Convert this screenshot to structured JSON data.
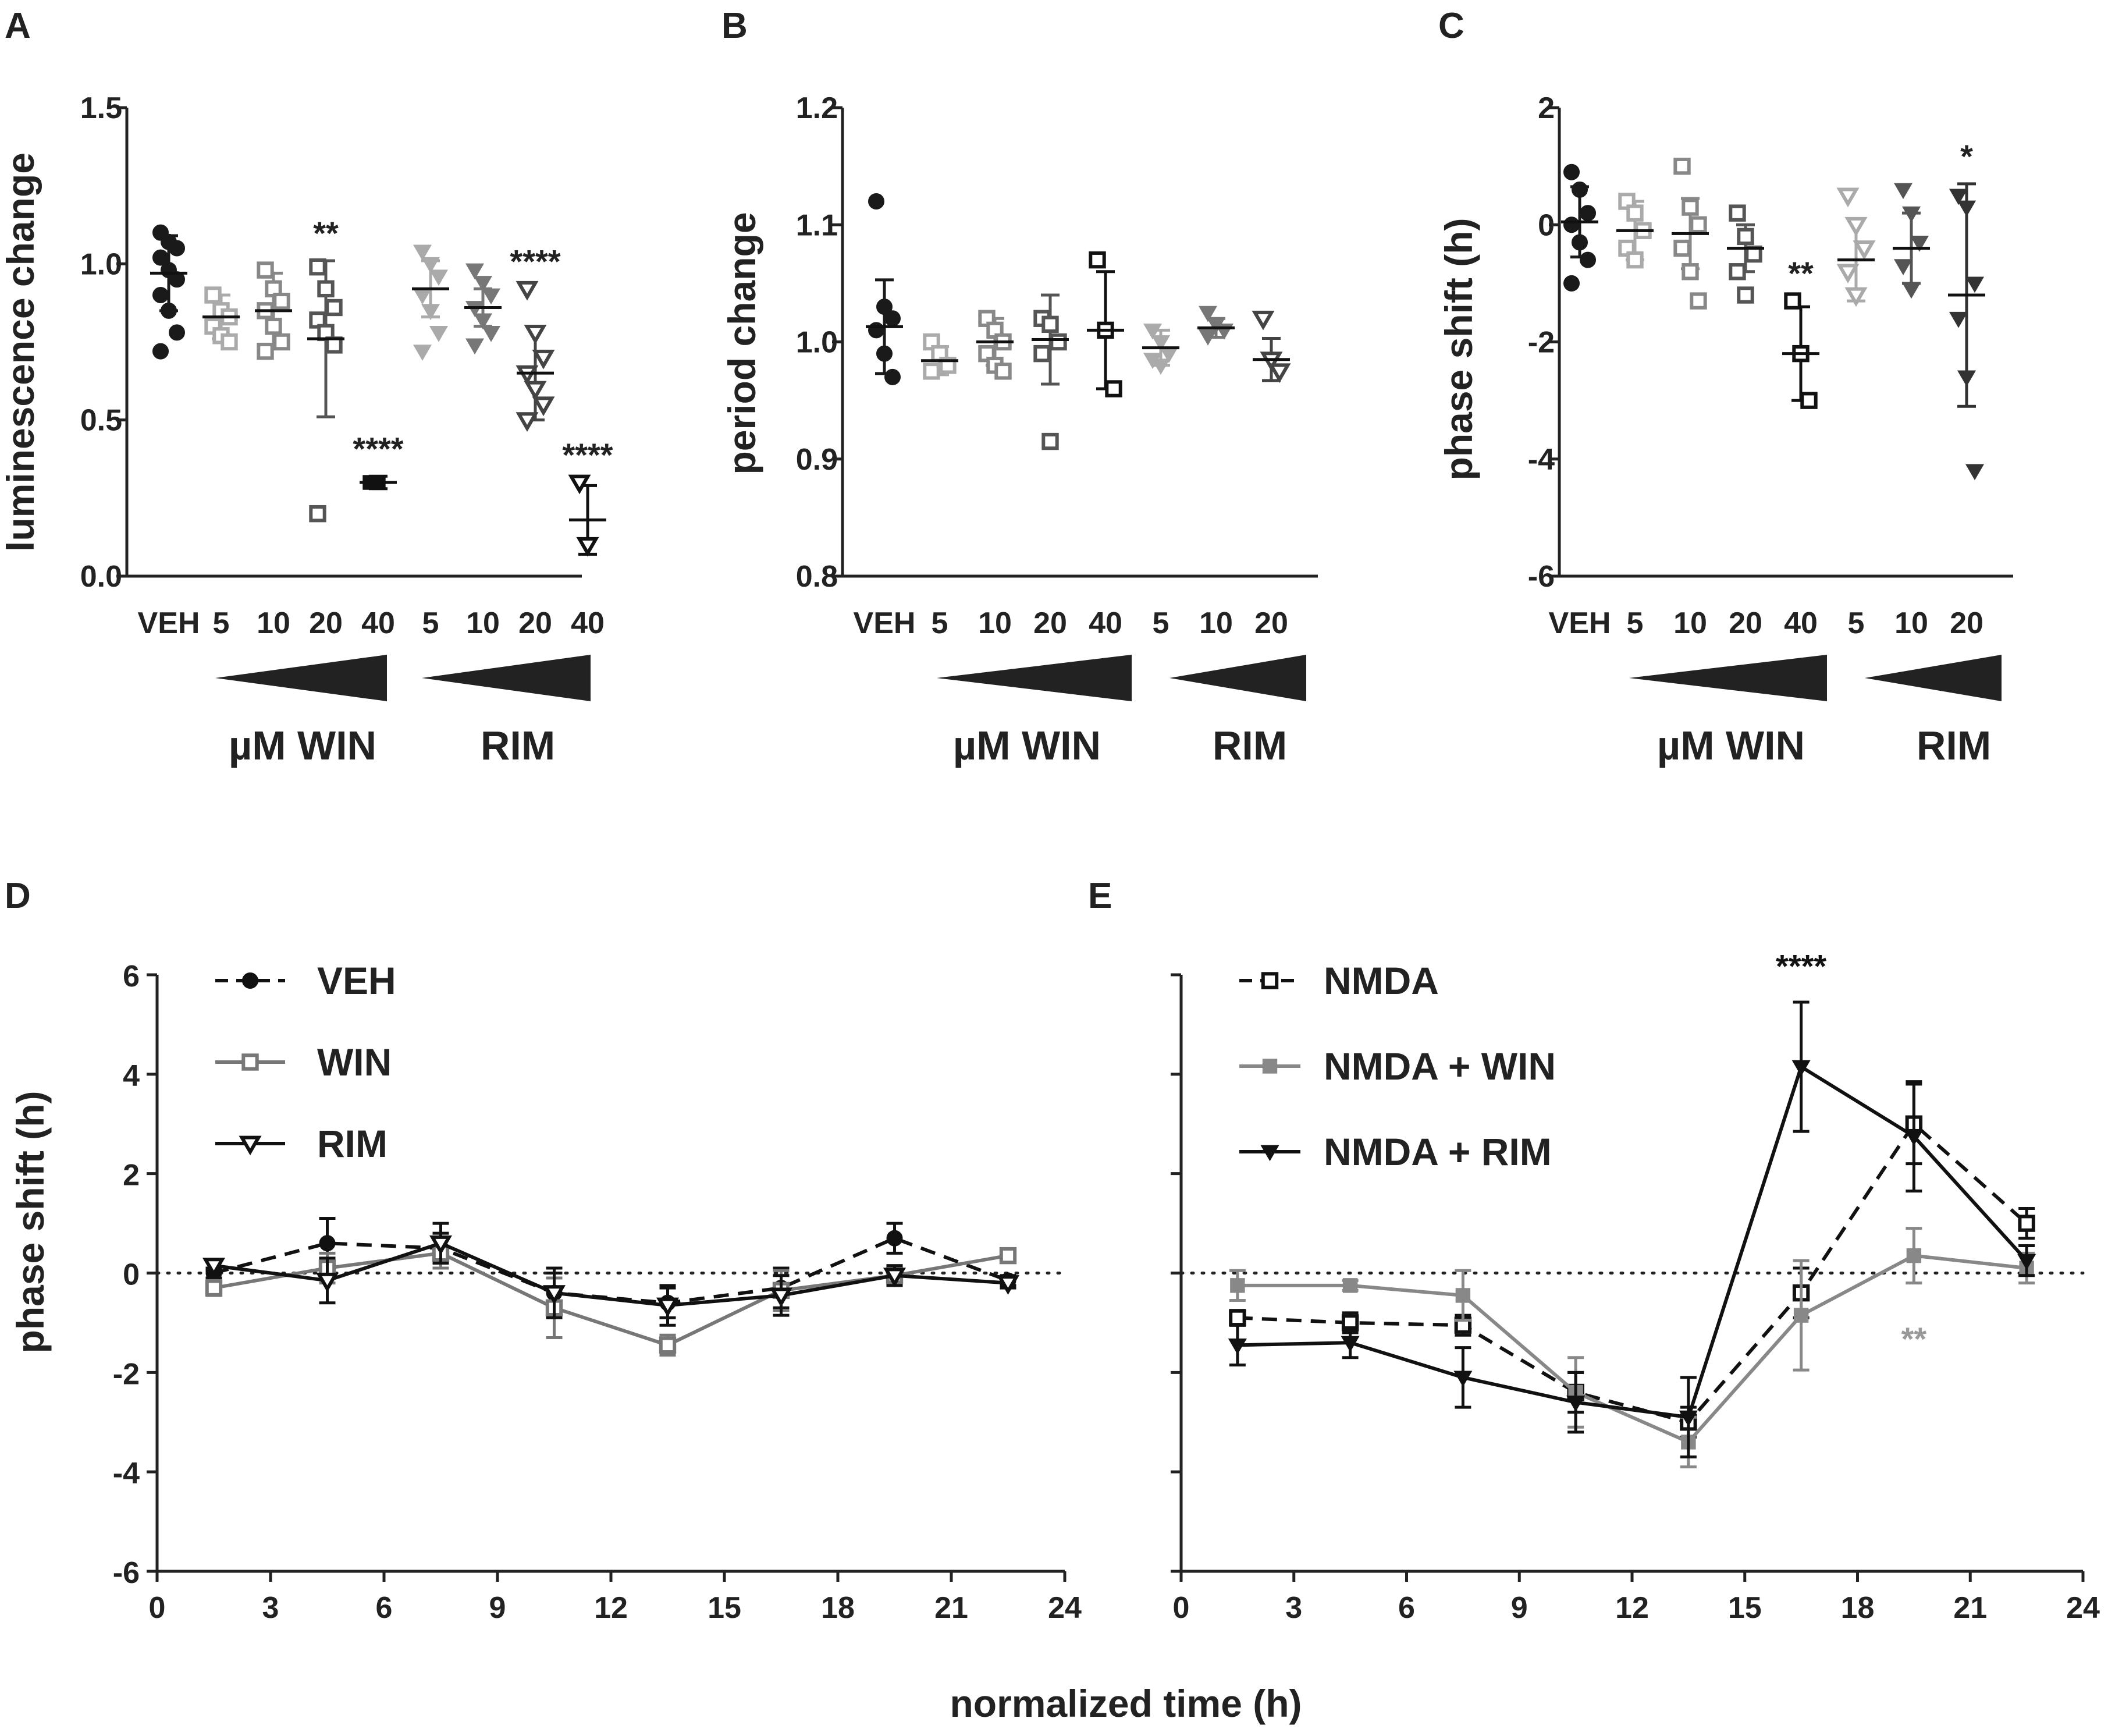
{
  "panels_ABC": [
    {
      "letter": "A",
      "ylabel": "luminescence change",
      "yticks": [
        "1.5",
        "1.0",
        "0.5",
        "0.0"
      ],
      "ylim": [
        0,
        1.5
      ],
      "categories": [
        "VEH",
        "5",
        "10",
        "20",
        "40",
        "5",
        "10",
        "20",
        "40"
      ],
      "group_labels": [
        "µM WIN",
        "RIM"
      ],
      "markers": [
        "circle",
        "square-open",
        "square-open",
        "square-open",
        "square",
        "triangle-down",
        "triangle-down",
        "triangle-down-open",
        "triangle-down-open"
      ],
      "colors": [
        "#1a1a1a",
        "#aaaaaa",
        "#888888",
        "#555555",
        "#111111",
        "#aaaaaa",
        "#777777",
        "#444444",
        "#111111"
      ],
      "means": [
        0.97,
        0.83,
        0.85,
        0.76,
        0.3,
        0.92,
        0.86,
        0.65,
        0.18
      ],
      "sd": [
        0.12,
        0.07,
        0.12,
        0.25,
        0.02,
        0.09,
        0.06,
        0.15,
        0.11
      ],
      "points": [
        [
          1.1,
          1.07,
          1.05,
          1.02,
          0.98,
          0.95,
          0.9,
          0.85,
          0.78,
          0.72
        ],
        [
          0.9,
          0.85,
          0.83,
          0.8,
          0.77,
          0.75
        ],
        [
          0.98,
          0.92,
          0.88,
          0.85,
          0.8,
          0.75,
          0.72
        ],
        [
          0.99,
          0.92,
          0.86,
          0.82,
          0.78,
          0.74,
          0.2
        ],
        [
          0.3,
          0.3
        ],
        [
          1.04,
          1.0,
          0.96,
          0.9,
          0.85,
          0.78,
          0.72
        ],
        [
          0.98,
          0.94,
          0.9,
          0.86,
          0.82,
          0.78,
          0.74
        ],
        [
          0.92,
          0.78,
          0.7,
          0.65,
          0.6,
          0.55,
          0.5
        ],
        [
          0.3,
          0.1
        ]
      ],
      "stars": [
        {
          "index": 3,
          "text": "**"
        },
        {
          "index": 4,
          "text": "****"
        },
        {
          "index": 7,
          "text": "****"
        },
        {
          "index": 8,
          "text": "****"
        }
      ]
    },
    {
      "letter": "B",
      "ylabel": "period change",
      "yticks": [
        "1.2",
        "1.1",
        "1.0",
        "0.9",
        "0.8"
      ],
      "ylim": [
        0.8,
        1.2
      ],
      "categories": [
        "VEH",
        "5",
        "10",
        "20",
        "40",
        "5",
        "10",
        "20"
      ],
      "group_labels": [
        "µM WIN",
        "RIM"
      ],
      "markers": [
        "circle",
        "square-open",
        "square-open",
        "square-open",
        "square-open",
        "triangle-down",
        "triangle-down",
        "triangle-down-open"
      ],
      "colors": [
        "#1a1a1a",
        "#aaaaaa",
        "#888888",
        "#555555",
        "#111111",
        "#aaaaaa",
        "#777777",
        "#444444"
      ],
      "means": [
        1.013,
        0.984,
        1.0,
        1.002,
        1.01,
        0.995,
        1.012,
        0.985
      ],
      "sd": [
        0.04,
        0.012,
        0.02,
        0.038,
        0.05,
        0.015,
        0.008,
        0.018
      ],
      "points": [
        [
          1.12,
          1.03,
          1.02,
          1.01,
          0.99,
          0.97
        ],
        [
          1.0,
          0.99,
          0.98,
          0.975
        ],
        [
          1.02,
          1.01,
          1.0,
          0.99,
          0.98,
          0.975
        ],
        [
          1.02,
          1.015,
          1.0,
          0.99,
          0.915
        ],
        [
          1.07,
          1.01,
          0.96
        ],
        [
          1.01,
          1.0,
          0.99,
          0.985,
          0.98
        ],
        [
          1.025,
          1.015,
          1.01,
          1.005
        ],
        [
          1.02,
          0.985,
          0.975
        ]
      ],
      "stars": []
    },
    {
      "letter": "C",
      "ylabel": "phase shift (h)",
      "yticks": [
        "2",
        "0",
        "-2",
        "-4",
        "-6"
      ],
      "ylim": [
        -6,
        2
      ],
      "categories": [
        "VEH",
        "5",
        "10",
        "20",
        "40",
        "5",
        "10",
        "20"
      ],
      "group_labels": [
        "µM WIN",
        "RIM"
      ],
      "markers": [
        "circle",
        "square-open",
        "square-open",
        "square-open",
        "square-open",
        "triangle-down-open",
        "triangle-down",
        "triangle-down"
      ],
      "colors": [
        "#1a1a1a",
        "#aaaaaa",
        "#888888",
        "#555555",
        "#111111",
        "#aaaaaa",
        "#555555",
        "#333333"
      ],
      "means": [
        0.05,
        -0.1,
        -0.15,
        -0.4,
        -2.2,
        -0.6,
        -0.4,
        -1.2
      ],
      "sd": [
        0.6,
        0.5,
        0.6,
        0.4,
        0.8,
        0.7,
        0.6,
        1.9
      ],
      "points": [
        [
          0.9,
          0.6,
          0.2,
          0.0,
          -0.3,
          -0.6,
          -1.0
        ],
        [
          0.4,
          0.2,
          -0.1,
          -0.4,
          -0.6
        ],
        [
          1.0,
          0.3,
          0.0,
          -0.4,
          -0.8,
          -1.3
        ],
        [
          0.2,
          -0.2,
          -0.5,
          -0.8,
          -1.2
        ],
        [
          -1.3,
          -2.2,
          -3.0
        ],
        [
          0.5,
          0.0,
          -0.4,
          -0.8,
          -1.2
        ],
        [
          0.6,
          0.2,
          -0.3,
          -0.7,
          -1.1
        ],
        [
          0.5,
          0.3,
          -1.0,
          -1.6,
          -2.6,
          -4.2
        ]
      ],
      "stars": [
        {
          "index": 4,
          "text": "**"
        },
        {
          "index": 7,
          "text": "*"
        }
      ]
    }
  ],
  "panel_D": {
    "letter": "D",
    "ylabel": "phase shift (h)",
    "yticks": [
      "6",
      "4",
      "2",
      "0",
      "-2",
      "-4",
      "-6"
    ],
    "ylim": [
      -6,
      6
    ],
    "xlim": [
      0,
      24
    ],
    "xticks": [
      "0",
      "3",
      "6",
      "9",
      "12",
      "15",
      "18",
      "21",
      "24"
    ],
    "series": [
      {
        "name": "VEH",
        "x": [
          1.5,
          4.5,
          7.5,
          10.5,
          13.5,
          16.5,
          19.5,
          22.5
        ],
        "y": [
          0.0,
          0.6,
          0.5,
          -0.4,
          -0.6,
          -0.3,
          0.7,
          -0.15
        ],
        "err": [
          0.1,
          0.5,
          0.3,
          0.4,
          0.3,
          0.4,
          0.3,
          0.1
        ],
        "color": "#111111",
        "marker": "circle",
        "dash": true
      },
      {
        "name": "WIN",
        "x": [
          1.5,
          4.5,
          7.5,
          10.5,
          13.5,
          16.5,
          19.5,
          22.5
        ],
        "y": [
          -0.3,
          0.1,
          0.4,
          -0.7,
          -1.45,
          -0.35,
          -0.05,
          0.35
        ],
        "err": [
          0.15,
          0.3,
          0.3,
          0.6,
          0.2,
          0.4,
          0.2,
          0.1
        ],
        "color": "#777777",
        "marker": "square-open",
        "dash": false
      },
      {
        "name": "RIM",
        "x": [
          1.5,
          4.5,
          7.5,
          10.5,
          13.5,
          16.5,
          19.5,
          22.5
        ],
        "y": [
          0.15,
          -0.15,
          0.6,
          -0.4,
          -0.65,
          -0.45,
          -0.05,
          -0.2
        ],
        "err": [
          0.1,
          0.45,
          0.4,
          0.5,
          0.4,
          0.4,
          0.2,
          0.1
        ],
        "color": "#111111",
        "marker": "triangle-down-open",
        "dash": false
      }
    ],
    "legend": [
      "VEH",
      "WIN",
      "RIM"
    ]
  },
  "panel_E": {
    "letter": "E",
    "ylim": [
      -6,
      6
    ],
    "xlim": [
      0,
      24
    ],
    "xticks": [
      "0",
      "3",
      "6",
      "9",
      "12",
      "15",
      "18",
      "21",
      "24"
    ],
    "series": [
      {
        "name": "NMDA",
        "x": [
          1.5,
          4.5,
          7.5,
          10.5,
          13.5,
          16.5,
          19.5,
          22.5
        ],
        "y": [
          -0.9,
          -1.0,
          -1.05,
          -2.4,
          -3.0,
          -0.4,
          3.0,
          1.0
        ],
        "err": [
          0.15,
          0.2,
          0.2,
          0.4,
          0.3,
          0.5,
          0.8,
          0.3
        ],
        "color": "#111111",
        "marker": "square-open",
        "dash": true
      },
      {
        "name": "NMDA + WIN",
        "x": [
          1.5,
          4.5,
          7.5,
          10.5,
          13.5,
          16.5,
          19.5,
          22.5
        ],
        "y": [
          -0.25,
          -0.25,
          -0.45,
          -2.4,
          -3.4,
          -0.85,
          0.35,
          0.1
        ],
        "err": [
          0.3,
          0.1,
          0.5,
          0.7,
          0.5,
          1.1,
          0.55,
          0.3
        ],
        "color": "#888888",
        "marker": "square",
        "dash": false
      },
      {
        "name": "NMDA + RIM",
        "x": [
          1.5,
          4.5,
          7.5,
          10.5,
          13.5,
          16.5,
          19.5,
          22.5
        ],
        "y": [
          -1.45,
          -1.4,
          -2.1,
          -2.6,
          -2.9,
          4.15,
          2.75,
          0.25
        ],
        "err": [
          0.4,
          0.3,
          0.6,
          0.6,
          0.8,
          1.3,
          1.1,
          0.3
        ],
        "color": "#111111",
        "marker": "triangle-down",
        "dash": false
      }
    ],
    "legend": [
      "NMDA",
      "NMDA + WIN",
      "NMDA + RIM"
    ],
    "stars": [
      {
        "text": "****",
        "x": 16.5,
        "y": 5.95,
        "color": "#111111"
      },
      {
        "text": "**",
        "x": 19.5,
        "y": -1.55,
        "color": "#999999"
      }
    ]
  },
  "shared_xlabel": "normalized time (h)"
}
